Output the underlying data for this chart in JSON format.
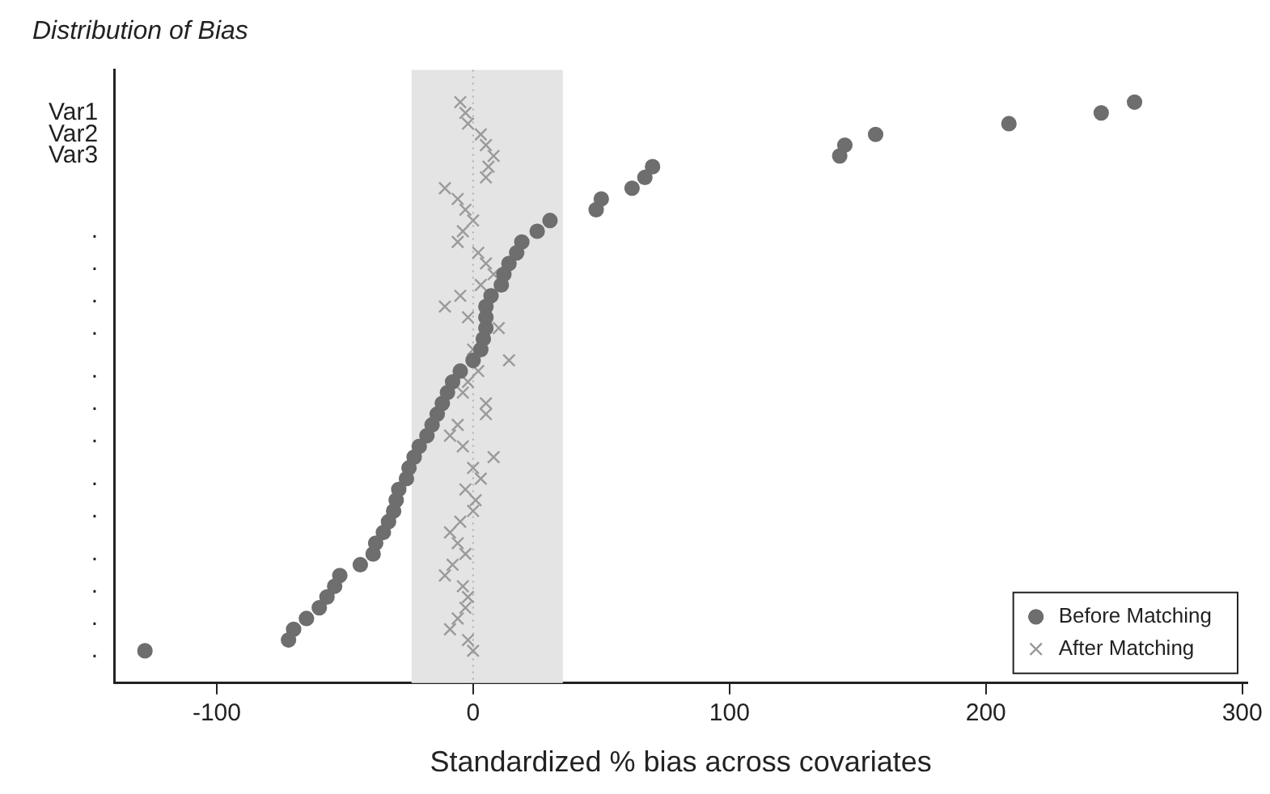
{
  "chart_data": {
    "type": "scatter",
    "orientation": "horizontal",
    "title": "Distribution of Bias",
    "xlabel": "Standardized % bias across covariates",
    "categories": [
      null,
      "Var1",
      null,
      "Var2",
      null,
      "Var3",
      null,
      null,
      null,
      null,
      null,
      null,
      ".",
      null,
      null,
      ".",
      null,
      null,
      ".",
      null,
      null,
      ".",
      null,
      null,
      null,
      ".",
      null,
      null,
      ".",
      null,
      null,
      ".",
      null,
      null,
      null,
      ".",
      null,
      null,
      ".",
      null,
      null,
      null,
      ".",
      null,
      null,
      ".",
      null,
      null,
      ".",
      null,
      null,
      "."
    ],
    "series": [
      {
        "name": "Before Matching",
        "color": "#6e6e6e",
        "marker": "circle",
        "values": [
          258,
          245,
          209,
          157,
          145,
          143,
          70,
          67,
          62,
          50,
          48,
          30,
          25,
          19,
          17,
          14,
          12,
          11,
          7,
          5,
          5,
          5,
          4,
          3,
          0,
          -5,
          -8,
          -10,
          -12,
          -14,
          -16,
          -18,
          -21,
          -23,
          -25,
          -26,
          -29,
          -30,
          -31,
          -33,
          -35,
          -38,
          -39,
          -44,
          -52,
          -54,
          -57,
          -60,
          -65,
          -70,
          -72,
          -128
        ]
      },
      {
        "name": "After Matching",
        "color": "#9a9a9a",
        "marker": "cross",
        "values": [
          -5,
          -3,
          -2,
          3,
          5,
          8,
          6,
          5,
          -11,
          -6,
          -3,
          0,
          -4,
          -6,
          2,
          5,
          8,
          3,
          -5,
          -11,
          -2,
          10,
          null,
          0,
          14,
          2,
          -2,
          -4,
          5,
          5,
          -6,
          -9,
          -4,
          8,
          0,
          3,
          -3,
          1,
          0,
          -5,
          -9,
          -6,
          -3,
          -8,
          -11,
          -4,
          -2,
          -3,
          -6,
          -9,
          -2,
          0
        ]
      }
    ],
    "xlim": [
      -140,
      302
    ],
    "xticks": [
      -100,
      0,
      100,
      200,
      300
    ],
    "bands": [
      {
        "axis": "x",
        "from": -24,
        "to": 35,
        "color": "#e4e4e4"
      }
    ],
    "ref_lines": [
      {
        "axis": "x",
        "value": 0,
        "color": "#b0b0b0",
        "line_style": "dotted"
      }
    ],
    "legend": "bottom right"
  }
}
